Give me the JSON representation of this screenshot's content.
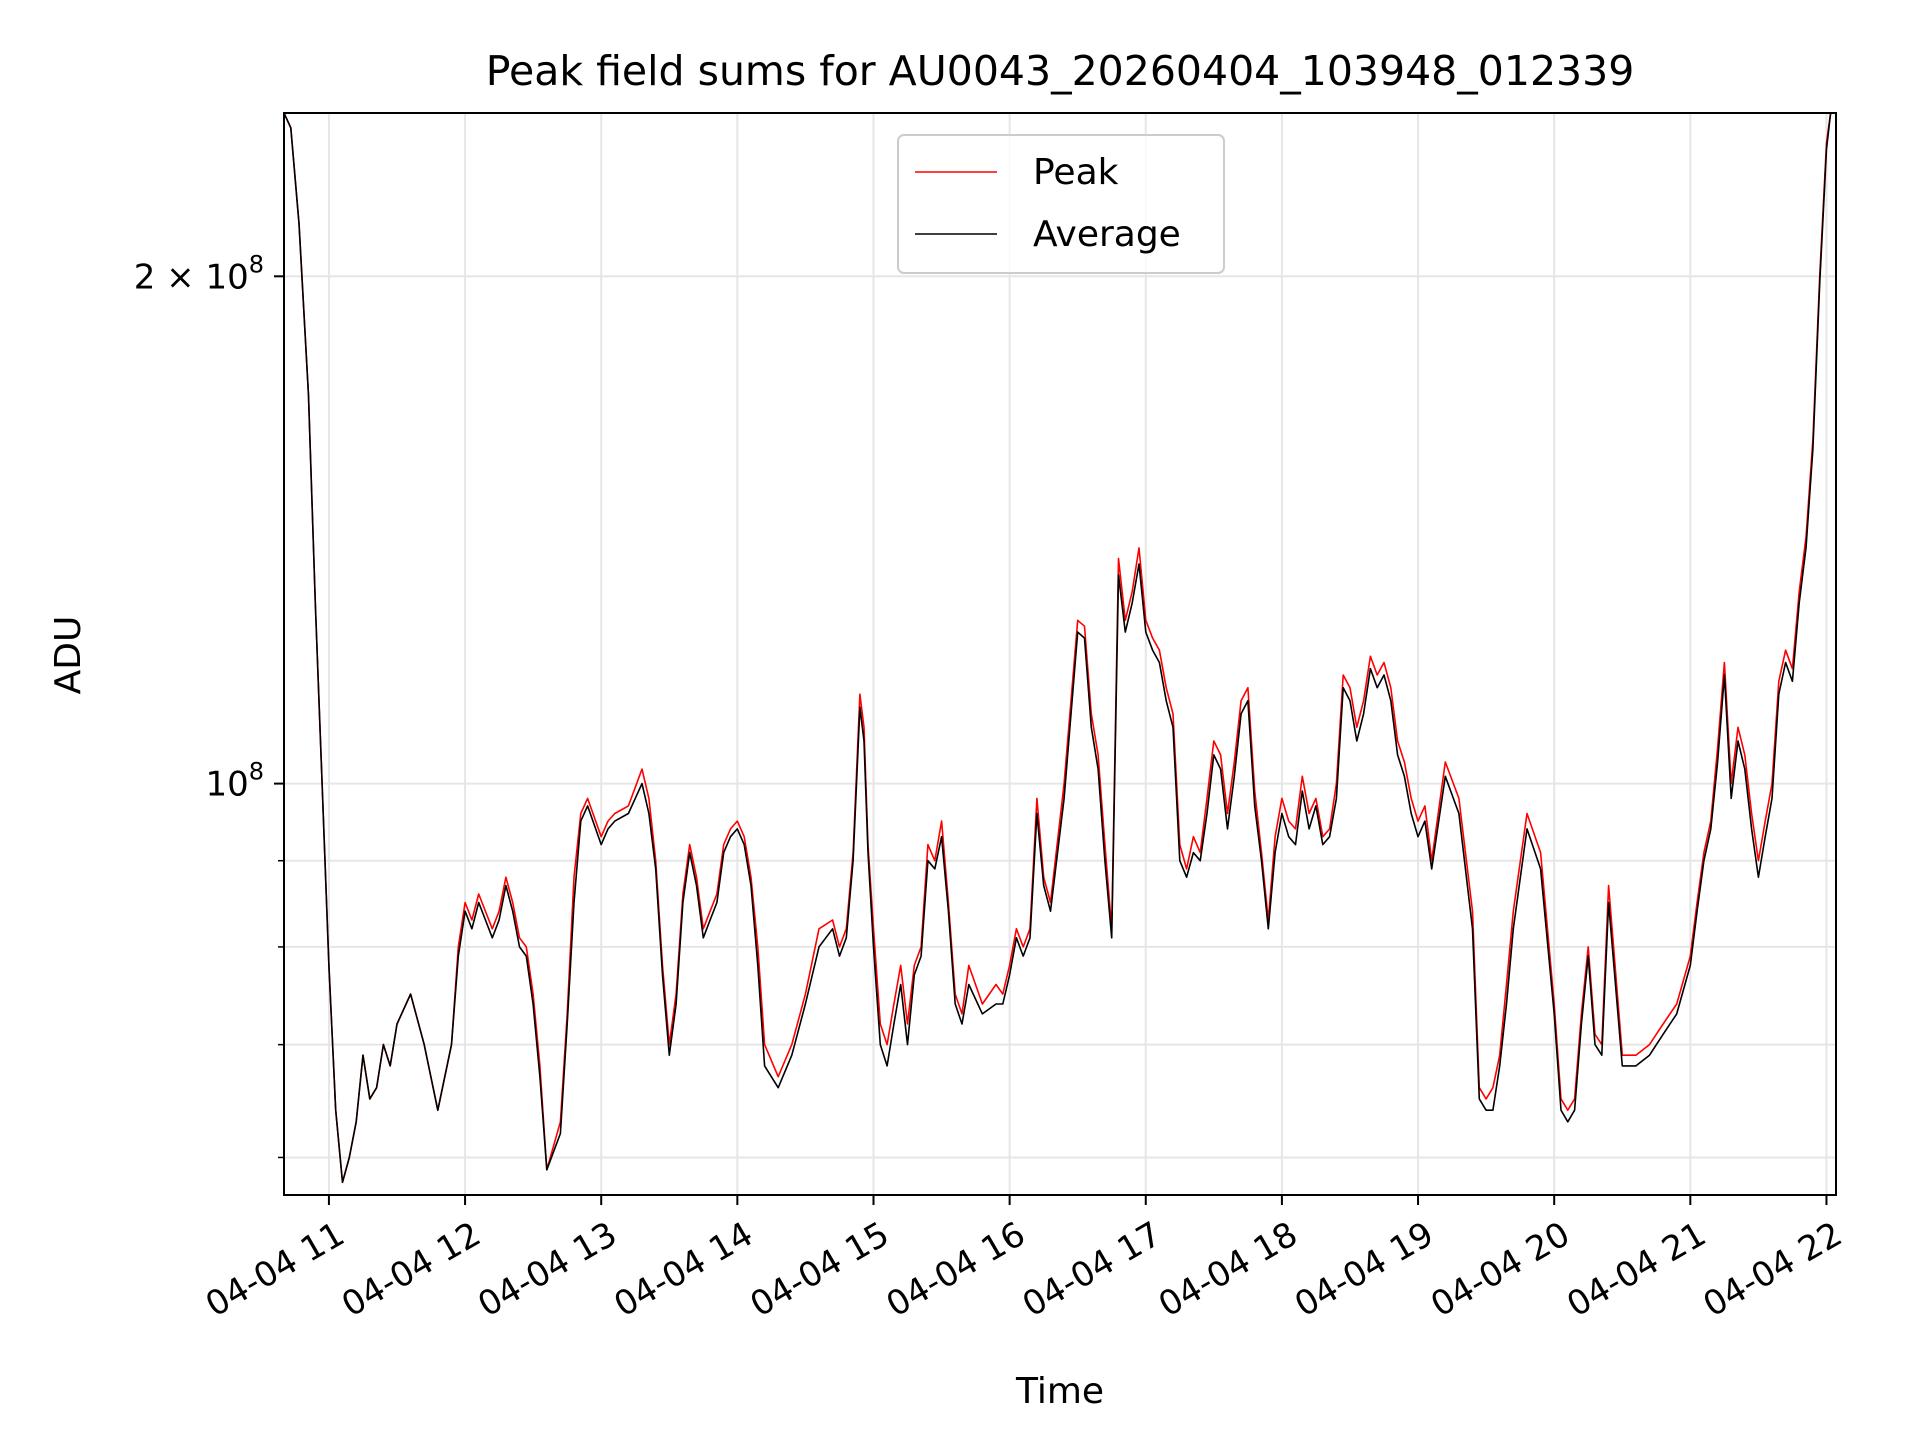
{
  "chart_data": {
    "type": "line",
    "title": "Peak field sums for AU0043_20260404_103948_012339",
    "xlabel": "Time",
    "ylabel": "ADU",
    "yscale": "log",
    "grid": true,
    "legend_position": "upper-center",
    "xlim": [
      10.67,
      22.07
    ],
    "ylim": [
      57000000,
      250000000
    ],
    "x_ticks": [
      {
        "value": 11,
        "label": "04-04 11"
      },
      {
        "value": 12,
        "label": "04-04 12"
      },
      {
        "value": 13,
        "label": "04-04 13"
      },
      {
        "value": 14,
        "label": "04-04 14"
      },
      {
        "value": 15,
        "label": "04-04 15"
      },
      {
        "value": 16,
        "label": "04-04 16"
      },
      {
        "value": 17,
        "label": "04-04 17"
      },
      {
        "value": 18,
        "label": "04-04 18"
      },
      {
        "value": 19,
        "label": "04-04 19"
      },
      {
        "value": 20,
        "label": "04-04 20"
      },
      {
        "value": 21,
        "label": "04-04 21"
      },
      {
        "value": 22,
        "label": "04-04 22"
      }
    ],
    "y_major_ticks": [
      {
        "value": 100000000,
        "base": "10",
        "exp": "8",
        "mult": ""
      },
      {
        "value": 200000000,
        "base": "10",
        "exp": "8",
        "mult": "2 × "
      }
    ],
    "y_minor_ticks": [
      60000000,
      70000000,
      80000000,
      90000000
    ],
    "x": [
      10.67,
      10.72,
      10.78,
      10.85,
      10.9,
      10.95,
      11.0,
      11.05,
      11.1,
      11.15,
      11.2,
      11.25,
      11.3,
      11.35,
      11.4,
      11.45,
      11.5,
      11.6,
      11.7,
      11.8,
      11.9,
      11.95,
      12.0,
      12.05,
      12.1,
      12.2,
      12.25,
      12.3,
      12.35,
      12.4,
      12.45,
      12.5,
      12.55,
      12.6,
      12.7,
      12.75,
      12.8,
      12.85,
      12.9,
      13.0,
      13.05,
      13.1,
      13.2,
      13.3,
      13.35,
      13.4,
      13.45,
      13.5,
      13.55,
      13.6,
      13.65,
      13.7,
      13.75,
      13.8,
      13.85,
      13.9,
      13.95,
      14.0,
      14.05,
      14.1,
      14.15,
      14.2,
      14.3,
      14.4,
      14.5,
      14.6,
      14.7,
      14.75,
      14.8,
      14.85,
      14.9,
      14.93,
      14.96,
      15.0,
      15.05,
      15.1,
      15.15,
      15.2,
      15.25,
      15.3,
      15.35,
      15.4,
      15.45,
      15.5,
      15.55,
      15.6,
      15.65,
      15.7,
      15.8,
      15.9,
      15.95,
      16.0,
      16.05,
      16.1,
      16.15,
      16.2,
      16.25,
      16.3,
      16.4,
      16.5,
      16.55,
      16.6,
      16.65,
      16.7,
      16.75,
      16.8,
      16.85,
      16.9,
      16.95,
      17.0,
      17.05,
      17.1,
      17.15,
      17.2,
      17.25,
      17.3,
      17.35,
      17.4,
      17.45,
      17.5,
      17.55,
      17.6,
      17.65,
      17.7,
      17.75,
      17.8,
      17.85,
      17.9,
      17.95,
      18.0,
      18.05,
      18.1,
      18.15,
      18.2,
      18.25,
      18.3,
      18.35,
      18.4,
      18.45,
      18.5,
      18.55,
      18.6,
      18.65,
      18.7,
      18.75,
      18.8,
      18.85,
      18.9,
      18.95,
      19.0,
      19.05,
      19.1,
      19.2,
      19.3,
      19.4,
      19.45,
      19.5,
      19.55,
      19.6,
      19.65,
      19.7,
      19.8,
      19.9,
      20.0,
      20.05,
      20.1,
      20.15,
      20.2,
      20.25,
      20.3,
      20.35,
      20.4,
      20.5,
      20.6,
      20.7,
      20.8,
      20.9,
      21.0,
      21.05,
      21.1,
      21.15,
      21.2,
      21.25,
      21.3,
      21.35,
      21.4,
      21.45,
      21.5,
      21.55,
      21.6,
      21.65,
      21.7,
      21.75,
      21.8,
      21.85,
      21.9,
      21.95,
      22.0,
      22.03,
      22.07
    ],
    "series": [
      {
        "name": "Peak",
        "color": "#ff0000",
        "values": [
          250000000,
          245000000,
          215000000,
          170000000,
          128000000,
          100000000,
          78000000,
          64000000,
          58000000,
          60000000,
          63000000,
          69000000,
          65000000,
          66000000,
          70000000,
          68000000,
          72000000,
          75000000,
          70000000,
          64000000,
          70000000,
          80000000,
          85000000,
          83000000,
          86000000,
          82000000,
          84000000,
          88000000,
          85000000,
          81000000,
          80000000,
          75000000,
          68000000,
          59000000,
          63000000,
          73000000,
          88000000,
          96000000,
          98000000,
          93000000,
          95000000,
          96000000,
          97000000,
          102000000,
          98000000,
          90000000,
          78000000,
          70000000,
          75000000,
          86000000,
          92000000,
          88000000,
          82000000,
          84000000,
          86000000,
          92000000,
          94000000,
          95000000,
          93000000,
          88000000,
          80000000,
          70000000,
          67000000,
          70000000,
          75000000,
          82000000,
          83000000,
          80000000,
          82000000,
          91000000,
          113000000,
          108000000,
          92000000,
          82000000,
          72000000,
          70000000,
          74000000,
          78000000,
          72000000,
          78000000,
          80000000,
          92000000,
          90000000,
          95000000,
          85000000,
          75000000,
          73000000,
          78000000,
          74000000,
          76000000,
          75000000,
          78000000,
          82000000,
          80000000,
          82000000,
          98000000,
          88000000,
          85000000,
          100000000,
          125000000,
          124000000,
          110000000,
          104000000,
          92000000,
          82000000,
          136000000,
          125000000,
          130000000,
          138000000,
          125000000,
          122000000,
          120000000,
          114000000,
          110000000,
          92000000,
          89000000,
          93000000,
          91000000,
          98000000,
          106000000,
          104000000,
          96000000,
          103000000,
          112000000,
          114000000,
          99000000,
          91000000,
          83000000,
          93000000,
          98000000,
          95000000,
          94000000,
          101000000,
          96000000,
          98000000,
          93000000,
          94000000,
          100000000,
          116000000,
          114000000,
          108000000,
          112000000,
          119000000,
          116000000,
          118000000,
          114000000,
          106000000,
          103000000,
          98000000,
          95000000,
          97000000,
          90000000,
          103000000,
          98000000,
          84000000,
          66000000,
          65000000,
          66000000,
          69000000,
          76000000,
          84000000,
          96000000,
          91000000,
          74000000,
          65000000,
          64000000,
          65000000,
          73000000,
          80000000,
          71000000,
          70000000,
          87000000,
          69000000,
          69000000,
          70000000,
          72000000,
          74000000,
          79000000,
          85000000,
          91000000,
          95000000,
          105000000,
          118000000,
          100000000,
          108000000,
          104000000,
          96000000,
          90000000,
          95000000,
          100000000,
          115000000,
          120000000,
          117000000,
          130000000,
          140000000,
          160000000,
          200000000,
          240000000,
          250000000,
          250000000
        ]
      },
      {
        "name": "Average",
        "color": "#000000",
        "values": [
          250000000,
          245000000,
          215000000,
          170000000,
          128000000,
          100000000,
          78000000,
          64000000,
          58000000,
          60000000,
          63000000,
          69000000,
          65000000,
          66000000,
          70000000,
          68000000,
          72000000,
          75000000,
          70000000,
          64000000,
          70000000,
          79000000,
          84000000,
          82000000,
          85000000,
          81000000,
          83000000,
          87000000,
          84000000,
          80000000,
          79000000,
          74000000,
          67000000,
          59000000,
          62000000,
          72000000,
          85000000,
          95000000,
          97000000,
          92000000,
          94000000,
          95000000,
          96000000,
          100000000,
          96000000,
          89000000,
          77000000,
          69000000,
          74000000,
          85000000,
          91000000,
          87000000,
          81000000,
          83000000,
          85000000,
          91000000,
          93000000,
          94000000,
          92000000,
          87000000,
          78000000,
          68000000,
          66000000,
          69000000,
          74000000,
          80000000,
          82000000,
          79000000,
          81000000,
          90000000,
          111000000,
          106000000,
          91000000,
          80000000,
          70000000,
          68000000,
          72000000,
          76000000,
          70000000,
          77000000,
          79000000,
          90000000,
          89000000,
          93000000,
          84000000,
          74000000,
          72000000,
          76000000,
          73000000,
          74000000,
          74000000,
          77000000,
          81000000,
          79000000,
          81000000,
          96000000,
          87000000,
          84000000,
          98000000,
          123000000,
          122000000,
          108000000,
          102000000,
          90000000,
          81000000,
          133000000,
          123000000,
          128000000,
          135000000,
          123000000,
          120000000,
          118000000,
          112000000,
          108000000,
          90000000,
          88000000,
          91000000,
          90000000,
          96000000,
          104000000,
          102000000,
          94000000,
          101000000,
          110000000,
          112000000,
          97000000,
          90000000,
          82000000,
          91000000,
          96000000,
          93000000,
          92000000,
          99000000,
          94000000,
          97000000,
          92000000,
          93000000,
          98000000,
          114000000,
          112000000,
          106000000,
          110000000,
          117000000,
          114000000,
          116000000,
          112000000,
          104000000,
          101000000,
          96000000,
          93000000,
          95000000,
          89000000,
          101000000,
          96000000,
          82000000,
          65000000,
          64000000,
          64000000,
          68000000,
          74000000,
          82000000,
          94000000,
          89000000,
          73000000,
          64000000,
          63000000,
          64000000,
          72000000,
          79000000,
          70000000,
          69000000,
          85000000,
          68000000,
          68000000,
          69000000,
          71000000,
          73000000,
          78000000,
          84000000,
          90000000,
          94000000,
          103000000,
          116000000,
          98000000,
          106000000,
          102000000,
          94000000,
          88000000,
          93000000,
          98000000,
          113000000,
          118000000,
          115000000,
          128000000,
          138000000,
          158000000,
          198000000,
          238000000,
          250000000,
          250000000
        ]
      }
    ]
  }
}
